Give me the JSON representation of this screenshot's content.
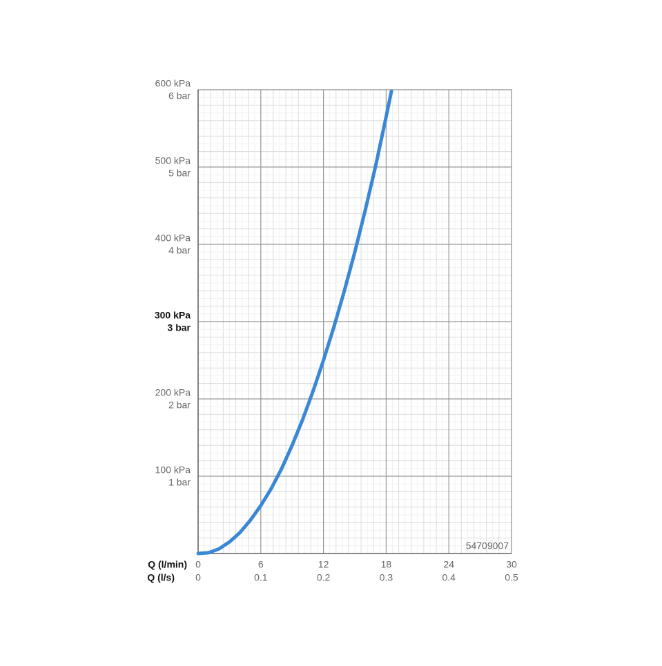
{
  "chart_data": {
    "type": "line",
    "x_label": "Q (l/min)",
    "x2_label": "Q (l/s)",
    "annotation": "54709007",
    "xlim": [
      0,
      30
    ],
    "xticks": [
      0,
      6,
      12,
      18,
      24,
      30
    ],
    "x2lim": [
      0,
      0.5
    ],
    "x2ticks": [
      0,
      0.1,
      0.2,
      0.3,
      0.4,
      0.5
    ],
    "ylim": [
      0,
      600
    ],
    "yticks": [
      {
        "value": 100,
        "label": "100 kPa",
        "bar_label": "1 bar"
      },
      {
        "value": 200,
        "label": "200 kPa",
        "bar_label": "2 bar"
      },
      {
        "value": 300,
        "label": "300 kPa",
        "bar_label": "3 bar"
      },
      {
        "value": 400,
        "label": "400 kPa",
        "bar_label": "4 bar"
      },
      {
        "value": 500,
        "label": "500 kPa",
        "bar_label": "5 bar"
      },
      {
        "value": 600,
        "label": "600 kPa",
        "bar_label": "6 bar"
      }
    ],
    "highlight_ytick": 300,
    "grid": true,
    "series": [
      {
        "color": "#3a87d6",
        "x": [
          0,
          1,
          2,
          3,
          4,
          5,
          6,
          7,
          8,
          9,
          10,
          11,
          12,
          13,
          14,
          15,
          16,
          17,
          18,
          18.5
        ],
        "values": [
          0,
          1,
          6,
          15,
          27,
          43,
          62,
          84,
          110,
          140,
          173,
          210,
          250,
          293,
          340,
          390,
          444,
          502,
          565,
          598
        ]
      }
    ]
  }
}
